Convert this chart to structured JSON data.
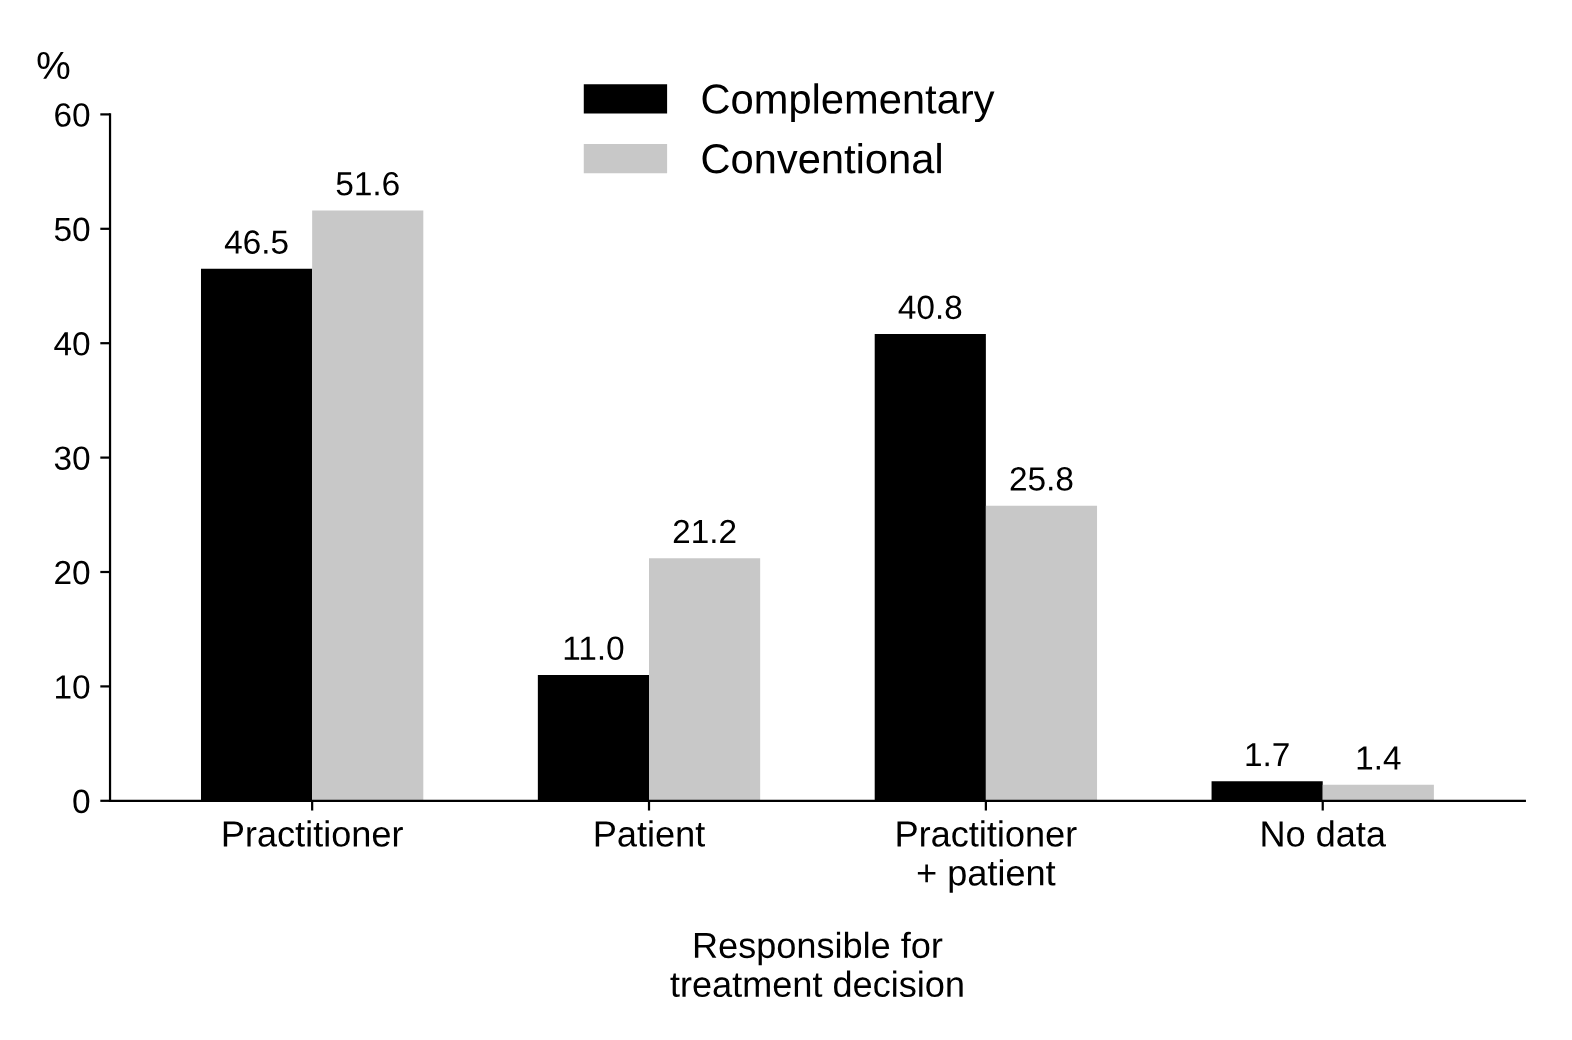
{
  "chart_data": {
    "type": "bar",
    "ylabel": "%",
    "xlabel": "Responsible for\ntreatment decision",
    "categories": [
      "Practitioner",
      "Patient",
      "Practitioner\n+ patient",
      "No data"
    ],
    "series": [
      {
        "name": "Complementary",
        "color": "#000000",
        "values": [
          46.5,
          11.0,
          40.8,
          1.7
        ],
        "value_labels": [
          "46.5",
          "11.0",
          "40.8",
          "1.7"
        ]
      },
      {
        "name": "Conventional",
        "color": "#c8c8c8",
        "values": [
          51.6,
          21.2,
          25.8,
          1.4
        ],
        "value_labels": [
          "51.6",
          "21.2",
          "25.8",
          "1.4"
        ]
      }
    ],
    "ylim": [
      0,
      60
    ],
    "yticks": [
      0,
      10,
      20,
      30,
      40,
      50,
      60
    ],
    "legend": "top",
    "grid": false
  }
}
